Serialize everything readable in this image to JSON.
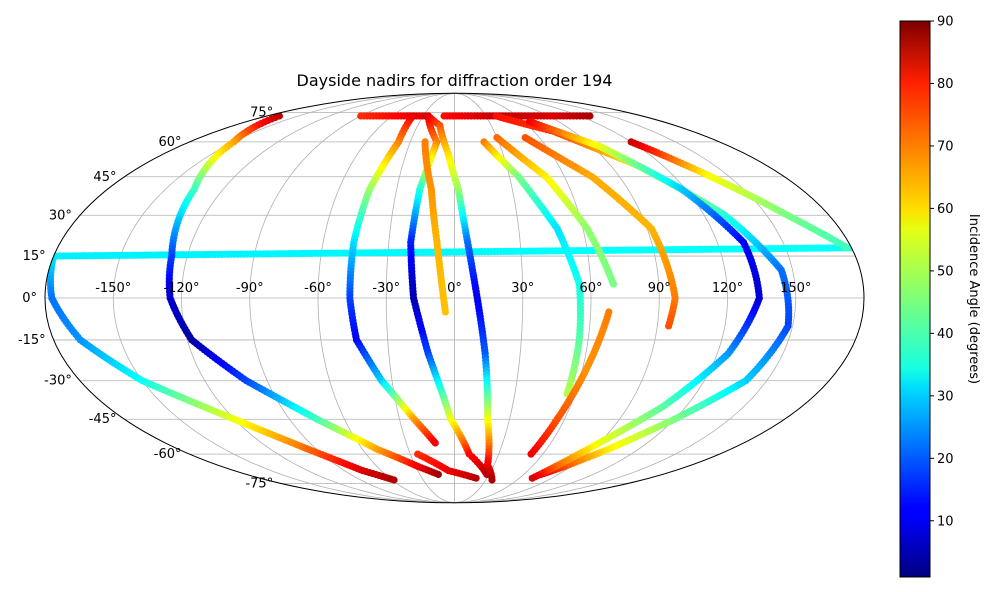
{
  "chart_data": {
    "type": "scatter",
    "projection": "mollweide",
    "title": "Dayside nadirs for diffraction order 194",
    "xlabel": "",
    "ylabel": "",
    "grid": true,
    "lon_tick_labels": [
      "-150°",
      "-120°",
      "-90°",
      "-60°",
      "-30°",
      "0°",
      "30°",
      "60°",
      "90°",
      "120°",
      "150°"
    ],
    "lon_tick_values": [
      -150,
      -120,
      -90,
      -60,
      -30,
      0,
      30,
      60,
      90,
      120,
      150
    ],
    "lat_tick_labels": [
      "-75°",
      "-60°",
      "-45°",
      "-30°",
      "-15°",
      "0°",
      "15°",
      "30°",
      "45°",
      "60°",
      "75°"
    ],
    "lat_tick_values": [
      -75,
      -60,
      -45,
      -30,
      -15,
      0,
      15,
      30,
      45,
      60,
      75
    ],
    "lat_range": [
      -73,
      73
    ],
    "colorbar": {
      "label": "Incidence Angle (degrees)",
      "range": [
        1,
        90
      ],
      "ticks": [
        "10",
        "20",
        "30",
        "40",
        "50",
        "60",
        "70",
        "80",
        "90"
      ],
      "tick_values": [
        10,
        20,
        30,
        40,
        50,
        60,
        70,
        80,
        90
      ],
      "colormap": "jet"
    },
    "series": [
      {
        "type": "arc",
        "points": [
          {
            "lon": 180,
            "lat": 18,
            "inc": 35
          },
          {
            "lon": -180,
            "lat": 15,
            "inc": 33
          },
          {
            "lon": -177,
            "lat": 0,
            "inc": 22
          },
          {
            "lon": -168,
            "lat": -15,
            "inc": 25
          },
          {
            "lon": -150,
            "lat": -30,
            "inc": 35
          },
          {
            "lon": -120,
            "lat": -45,
            "inc": 55
          },
          {
            "lon": -95,
            "lat": -58,
            "inc": 70
          },
          {
            "lon": -75,
            "lat": -68,
            "inc": 82
          },
          {
            "lon": -58,
            "lat": -73,
            "inc": 86
          }
        ]
      },
      {
        "type": "arc",
        "points": [
          {
            "lon": -168,
            "lat": 73,
            "inc": 85
          },
          {
            "lon": -150,
            "lat": 60,
            "inc": 65
          },
          {
            "lon": -135,
            "lat": 40,
            "inc": 40
          },
          {
            "lon": -127,
            "lat": 15,
            "inc": 18
          },
          {
            "lon": -125,
            "lat": 0,
            "inc": 8
          },
          {
            "lon": -118,
            "lat": -15,
            "inc": 4
          },
          {
            "lon": -100,
            "lat": -30,
            "inc": 18
          },
          {
            "lon": -75,
            "lat": -45,
            "inc": 40
          },
          {
            "lon": -50,
            "lat": -58,
            "inc": 65
          },
          {
            "lon": -28,
            "lat": -66,
            "inc": 80
          },
          {
            "lon": -14,
            "lat": -70,
            "inc": 87
          }
        ]
      },
      {
        "type": "arc",
        "points": [
          {
            "lon": -90,
            "lat": 73,
            "inc": 75
          },
          {
            "lon": -60,
            "lat": 73,
            "inc": 78
          },
          {
            "lon": -40,
            "lat": 73,
            "inc": 80
          },
          {
            "lon": -38,
            "lat": 60,
            "inc": 68
          },
          {
            "lon": -44,
            "lat": 40,
            "inc": 48
          },
          {
            "lon": -46,
            "lat": 20,
            "inc": 32
          },
          {
            "lon": -46,
            "lat": 0,
            "inc": 18
          },
          {
            "lon": -44,
            "lat": -15,
            "inc": 12
          },
          {
            "lon": -35,
            "lat": -30,
            "inc": 30
          },
          {
            "lon": -22,
            "lat": -45,
            "inc": 65
          },
          {
            "lon": -12,
            "lat": -55,
            "inc": 80
          }
        ]
      },
      {
        "type": "arc",
        "points": [
          {
            "lon": -45,
            "lat": 73,
            "inc": 80
          },
          {
            "lon": -25,
            "lat": 73,
            "inc": 82
          },
          {
            "lon": -12,
            "lat": 60,
            "inc": 68
          },
          {
            "lon": -18,
            "lat": 40,
            "inc": 38
          },
          {
            "lon": -20,
            "lat": 20,
            "inc": 15
          },
          {
            "lon": -18,
            "lat": 0,
            "inc": 5
          },
          {
            "lon": -12,
            "lat": -20,
            "inc": 18
          },
          {
            "lon": -2,
            "lat": -45,
            "inc": 55
          },
          {
            "lon": 10,
            "lat": -60,
            "inc": 78
          },
          {
            "lon": 28,
            "lat": -70,
            "inc": 85
          }
        ]
      },
      {
        "type": "arc",
        "points": [
          {
            "lon": -25,
            "lat": 73,
            "inc": 82
          },
          {
            "lon": -12,
            "lat": 68,
            "inc": 72
          },
          {
            "lon": -4,
            "lat": 55,
            "inc": 60
          },
          {
            "lon": 2,
            "lat": 40,
            "inc": 48
          },
          {
            "lon": 6,
            "lat": 20,
            "inc": 22
          },
          {
            "lon": 10,
            "lat": 0,
            "inc": 10
          },
          {
            "lon": 14,
            "lat": -20,
            "inc": 20
          },
          {
            "lon": 18,
            "lat": -45,
            "inc": 55
          },
          {
            "lon": 25,
            "lat": -65,
            "inc": 80
          },
          {
            "lon": 36,
            "lat": -73,
            "inc": 86
          }
        ]
      },
      {
        "type": "arc",
        "points": [
          {
            "lon": -20,
            "lat": 60,
            "inc": 68
          },
          {
            "lon": -12,
            "lat": 40,
            "inc": 66
          },
          {
            "lon": -8,
            "lat": 20,
            "inc": 63
          },
          {
            "lon": -4,
            "lat": -5,
            "inc": 62
          }
        ]
      },
      {
        "type": "arc",
        "points": [
          {
            "lon": -10,
            "lat": 73,
            "inc": 78
          },
          {
            "lon": 10,
            "lat": 73,
            "inc": 80
          },
          {
            "lon": 40,
            "lat": 73,
            "inc": 84
          },
          {
            "lon": 95,
            "lat": 73,
            "inc": 82
          },
          {
            "lon": 130,
            "lat": 73,
            "inc": 86
          }
        ]
      },
      {
        "type": "arc",
        "points": [
          {
            "lon": 20,
            "lat": 60,
            "inc": 68
          },
          {
            "lon": 35,
            "lat": 45,
            "inc": 45
          },
          {
            "lon": 48,
            "lat": 25,
            "inc": 32
          },
          {
            "lon": 55,
            "lat": 5,
            "inc": 36
          },
          {
            "lon": 56,
            "lat": -15,
            "inc": 42
          },
          {
            "lon": 56,
            "lat": -35,
            "inc": 50
          }
        ]
      },
      {
        "type": "arc",
        "points": [
          {
            "lon": 30,
            "lat": 62,
            "inc": 70
          },
          {
            "lon": 50,
            "lat": 45,
            "inc": 58
          },
          {
            "lon": 62,
            "lat": 25,
            "inc": 47
          },
          {
            "lon": 70,
            "lat": 5,
            "inc": 45
          }
        ]
      },
      {
        "type": "arc",
        "points": [
          {
            "lon": 50,
            "lat": 62,
            "inc": 72
          },
          {
            "lon": 75,
            "lat": 45,
            "inc": 64
          },
          {
            "lon": 92,
            "lat": 25,
            "inc": 63
          },
          {
            "lon": 97,
            "lat": 0,
            "inc": 68
          },
          {
            "lon": 95,
            "lat": -10,
            "inc": 72
          }
        ]
      },
      {
        "type": "arc",
        "points": [
          {
            "lon": 40,
            "lat": 73,
            "inc": 78
          },
          {
            "lon": 75,
            "lat": 65,
            "inc": 74
          },
          {
            "lon": 105,
            "lat": 50,
            "inc": 58
          },
          {
            "lon": 130,
            "lat": 30,
            "inc": 38
          },
          {
            "lon": 145,
            "lat": 10,
            "inc": 22
          },
          {
            "lon": 148,
            "lat": -10,
            "inc": 18
          },
          {
            "lon": 140,
            "lat": -30,
            "inc": 30
          },
          {
            "lon": 120,
            "lat": -45,
            "inc": 45
          },
          {
            "lon": 100,
            "lat": -58,
            "inc": 58
          },
          {
            "lon": 85,
            "lat": -66,
            "inc": 72
          },
          {
            "lon": 75,
            "lat": -70,
            "inc": 82
          }
        ]
      },
      {
        "type": "arc",
        "points": [
          {
            "lon": 65,
            "lat": 70,
            "inc": 80
          },
          {
            "lon": 95,
            "lat": 58,
            "inc": 55
          },
          {
            "lon": 118,
            "lat": 40,
            "inc": 30
          },
          {
            "lon": 132,
            "lat": 20,
            "inc": 12
          },
          {
            "lon": 134,
            "lat": 0,
            "inc": 8
          },
          {
            "lon": 125,
            "lat": -20,
            "inc": 25
          },
          {
            "lon": 108,
            "lat": -40,
            "inc": 42
          },
          {
            "lon": 90,
            "lat": -55,
            "inc": 55
          },
          {
            "lon": 78,
            "lat": -66,
            "inc": 70
          },
          {
            "lon": 72,
            "lat": -72,
            "inc": 82
          }
        ]
      },
      {
        "type": "arc",
        "points": [
          {
            "lon": 120,
            "lat": 60,
            "inc": 84
          },
          {
            "lon": 140,
            "lat": 45,
            "inc": 56
          },
          {
            "lon": 160,
            "lat": 30,
            "inc": 45
          },
          {
            "lon": 178,
            "lat": 18,
            "inc": 40
          }
        ]
      },
      {
        "type": "arc",
        "points": [
          {
            "lon": 52,
            "lat": -60,
            "inc": 80
          },
          {
            "lon": 56,
            "lat": -45,
            "inc": 72
          },
          {
            "lon": 62,
            "lat": -25,
            "inc": 66
          },
          {
            "lon": 68,
            "lat": -5,
            "inc": 68
          }
        ]
      },
      {
        "type": "arc",
        "points": [
          {
            "lon": -25,
            "lat": -60,
            "inc": 75
          },
          {
            "lon": -5,
            "lat": -68,
            "inc": 80
          },
          {
            "lon": 20,
            "lat": -72,
            "inc": 85
          }
        ]
      }
    ]
  }
}
